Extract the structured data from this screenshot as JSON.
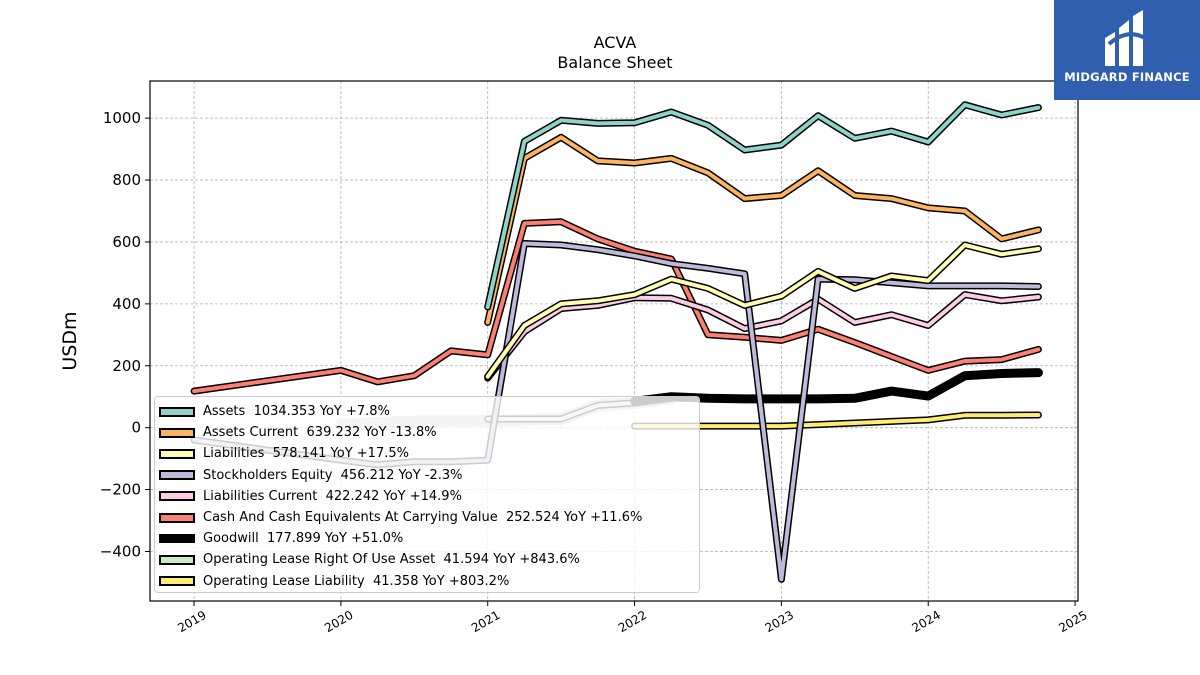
{
  "chart_data": {
    "type": "line",
    "title": "ACVA",
    "subtitle": "Balance  Sheet",
    "xlabel": "",
    "ylabel": "USDm",
    "xlim": [
      2018.7,
      2025.02
    ],
    "ylim": [
      -560,
      1120
    ],
    "grid": true,
    "legend_position": "lower-left",
    "x_ticks": [
      2019,
      2020,
      2021,
      2022,
      2023,
      2024,
      2025
    ],
    "y_ticks": [
      -400,
      -200,
      0,
      200,
      400,
      600,
      800,
      1000
    ],
    "y_tick_labels": [
      "−400",
      "−200",
      "0",
      "200",
      "400",
      "600",
      "800",
      "1000"
    ],
    "series": [
      {
        "name": "Assets",
        "legend": "Assets  1034.353 YoY +7.8%",
        "color": "#8dd3c7",
        "width": 4,
        "x": [
          2021.0,
          2021.25,
          2021.5,
          2021.75,
          2022.0,
          2022.25,
          2022.5,
          2022.75,
          2023.0,
          2023.25,
          2023.5,
          2023.75,
          2024.0,
          2024.25,
          2024.5,
          2024.75
        ],
        "y": [
          390,
          925,
          993,
          983,
          985,
          1020,
          977,
          897,
          913,
          1008,
          935,
          958,
          923,
          1043,
          1010,
          1034
        ]
      },
      {
        "name": "Assets Current",
        "legend": "Assets Current  639.232 YoY -13.8%",
        "color": "#fdb462",
        "width": 4,
        "x": [
          2021.0,
          2021.25,
          2021.5,
          2021.75,
          2022.0,
          2022.25,
          2022.5,
          2022.75,
          2023.0,
          2023.25,
          2023.5,
          2023.75,
          2024.0,
          2024.25,
          2024.5,
          2024.75
        ],
        "y": [
          340,
          870,
          938,
          862,
          855,
          870,
          823,
          740,
          750,
          830,
          750,
          740,
          710,
          700,
          610,
          639
        ]
      },
      {
        "name": "Liabilities",
        "legend": "Liabilities  578.141 YoY +17.5%",
        "color": "#ffffb3",
        "width": 4,
        "x": [
          2021.0,
          2021.25,
          2021.5,
          2021.75,
          2022.0,
          2022.25,
          2022.5,
          2022.75,
          2023.0,
          2023.25,
          2023.5,
          2023.75,
          2024.0,
          2024.25,
          2024.5,
          2024.75
        ],
        "y": [
          165,
          330,
          400,
          410,
          430,
          480,
          450,
          395,
          425,
          505,
          450,
          490,
          475,
          590,
          560,
          578
        ]
      },
      {
        "name": "Stockholders Equity",
        "legend": "Stockholders Equity  456.212 YoY -2.3%",
        "color": "#bebada",
        "width": 4,
        "x": [
          2019.0,
          2020.0,
          2020.25,
          2020.5,
          2020.75,
          2021.0,
          2021.25,
          2021.5,
          2021.75,
          2022.0,
          2022.25,
          2022.5,
          2022.75,
          2023.0,
          2023.25,
          2023.5,
          2023.75,
          2024.0,
          2024.25,
          2024.5,
          2024.75
        ],
        "y": [
          -40,
          -105,
          -120,
          -110,
          -110,
          -105,
          595,
          590,
          575,
          555,
          530,
          515,
          497,
          -490,
          480,
          478,
          468,
          458,
          458,
          458,
          456
        ]
      },
      {
        "name": "Liabilities Current",
        "legend": "Liabilities Current  422.242 YoY +14.9%",
        "color": "#fccde5",
        "width": 4,
        "x": [
          2021.0,
          2021.25,
          2021.5,
          2021.75,
          2022.0,
          2022.25,
          2022.5,
          2022.75,
          2023.0,
          2023.25,
          2023.5,
          2023.75,
          2024.0,
          2024.25,
          2024.5,
          2024.75
        ],
        "y": [
          160,
          310,
          385,
          395,
          420,
          418,
          380,
          320,
          345,
          415,
          340,
          365,
          330,
          430,
          410,
          422
        ]
      },
      {
        "name": "Cash And Cash Equivalents At Carrying Value",
        "legend": "Cash And Cash Equivalents At Carrying Value  252.524 YoY +11.6%",
        "color": "#fb8072",
        "width": 4,
        "x": [
          2019.0,
          2020.0,
          2020.25,
          2020.5,
          2020.75,
          2021.0,
          2021.25,
          2021.5,
          2021.75,
          2022.0,
          2022.25,
          2022.5,
          2022.75,
          2023.0,
          2023.25,
          2023.5,
          2023.75,
          2024.0,
          2024.25,
          2024.5,
          2024.75
        ],
        "y": [
          118,
          185,
          148,
          168,
          248,
          235,
          660,
          665,
          610,
          570,
          545,
          300,
          292,
          282,
          318,
          275,
          230,
          185,
          215,
          220,
          253
        ]
      },
      {
        "name": "Goodwill",
        "legend": "Goodwill  177.899 YoY +51.0%",
        "color": "#000000",
        "width": 9,
        "x": [
          2022.0,
          2022.25,
          2022.5,
          2022.75,
          2023.0,
          2023.25,
          2023.5,
          2023.75,
          2024.0,
          2024.25,
          2024.5,
          2024.75
        ],
        "y": [
          85,
          100,
          95,
          93,
          93,
          93,
          95,
          118,
          102,
          168,
          175,
          178
        ]
      },
      {
        "name": "Operating Lease Right Of Use Asset",
        "legend": "Operating Lease Right Of Use Asset  41.594 YoY +843.6%",
        "color": "#ccebc5",
        "width": 4,
        "x": [
          2021.0,
          2021.5,
          2021.75,
          2022.0,
          2022.25
        ],
        "y": [
          28,
          28,
          72,
          80,
          95
        ]
      },
      {
        "name": "Operating Lease Liability",
        "legend": "Operating Lease Liability  41.358 YoY +803.2%",
        "color": "#ffed6f",
        "width": 4,
        "x": [
          2022.0,
          2022.5,
          2023.0,
          2023.5,
          2024.0,
          2024.25,
          2024.5,
          2024.75
        ],
        "y": [
          5,
          5,
          5,
          15,
          25,
          40,
          40,
          41
        ]
      }
    ],
    "grey_overlay": {
      "color": "#c8c8c8",
      "x": [
        2020.0,
        2020.25,
        2020.5,
        2020.75,
        2021.0,
        2021.25,
        2021.5,
        2021.75,
        2022.0,
        2022.25
      ],
      "y": [
        10,
        15,
        20,
        22,
        22,
        25,
        28,
        72,
        80,
        95
      ]
    }
  },
  "logo": {
    "text": "MIDGARD FINANCE",
    "bg": "#2f5fae"
  }
}
